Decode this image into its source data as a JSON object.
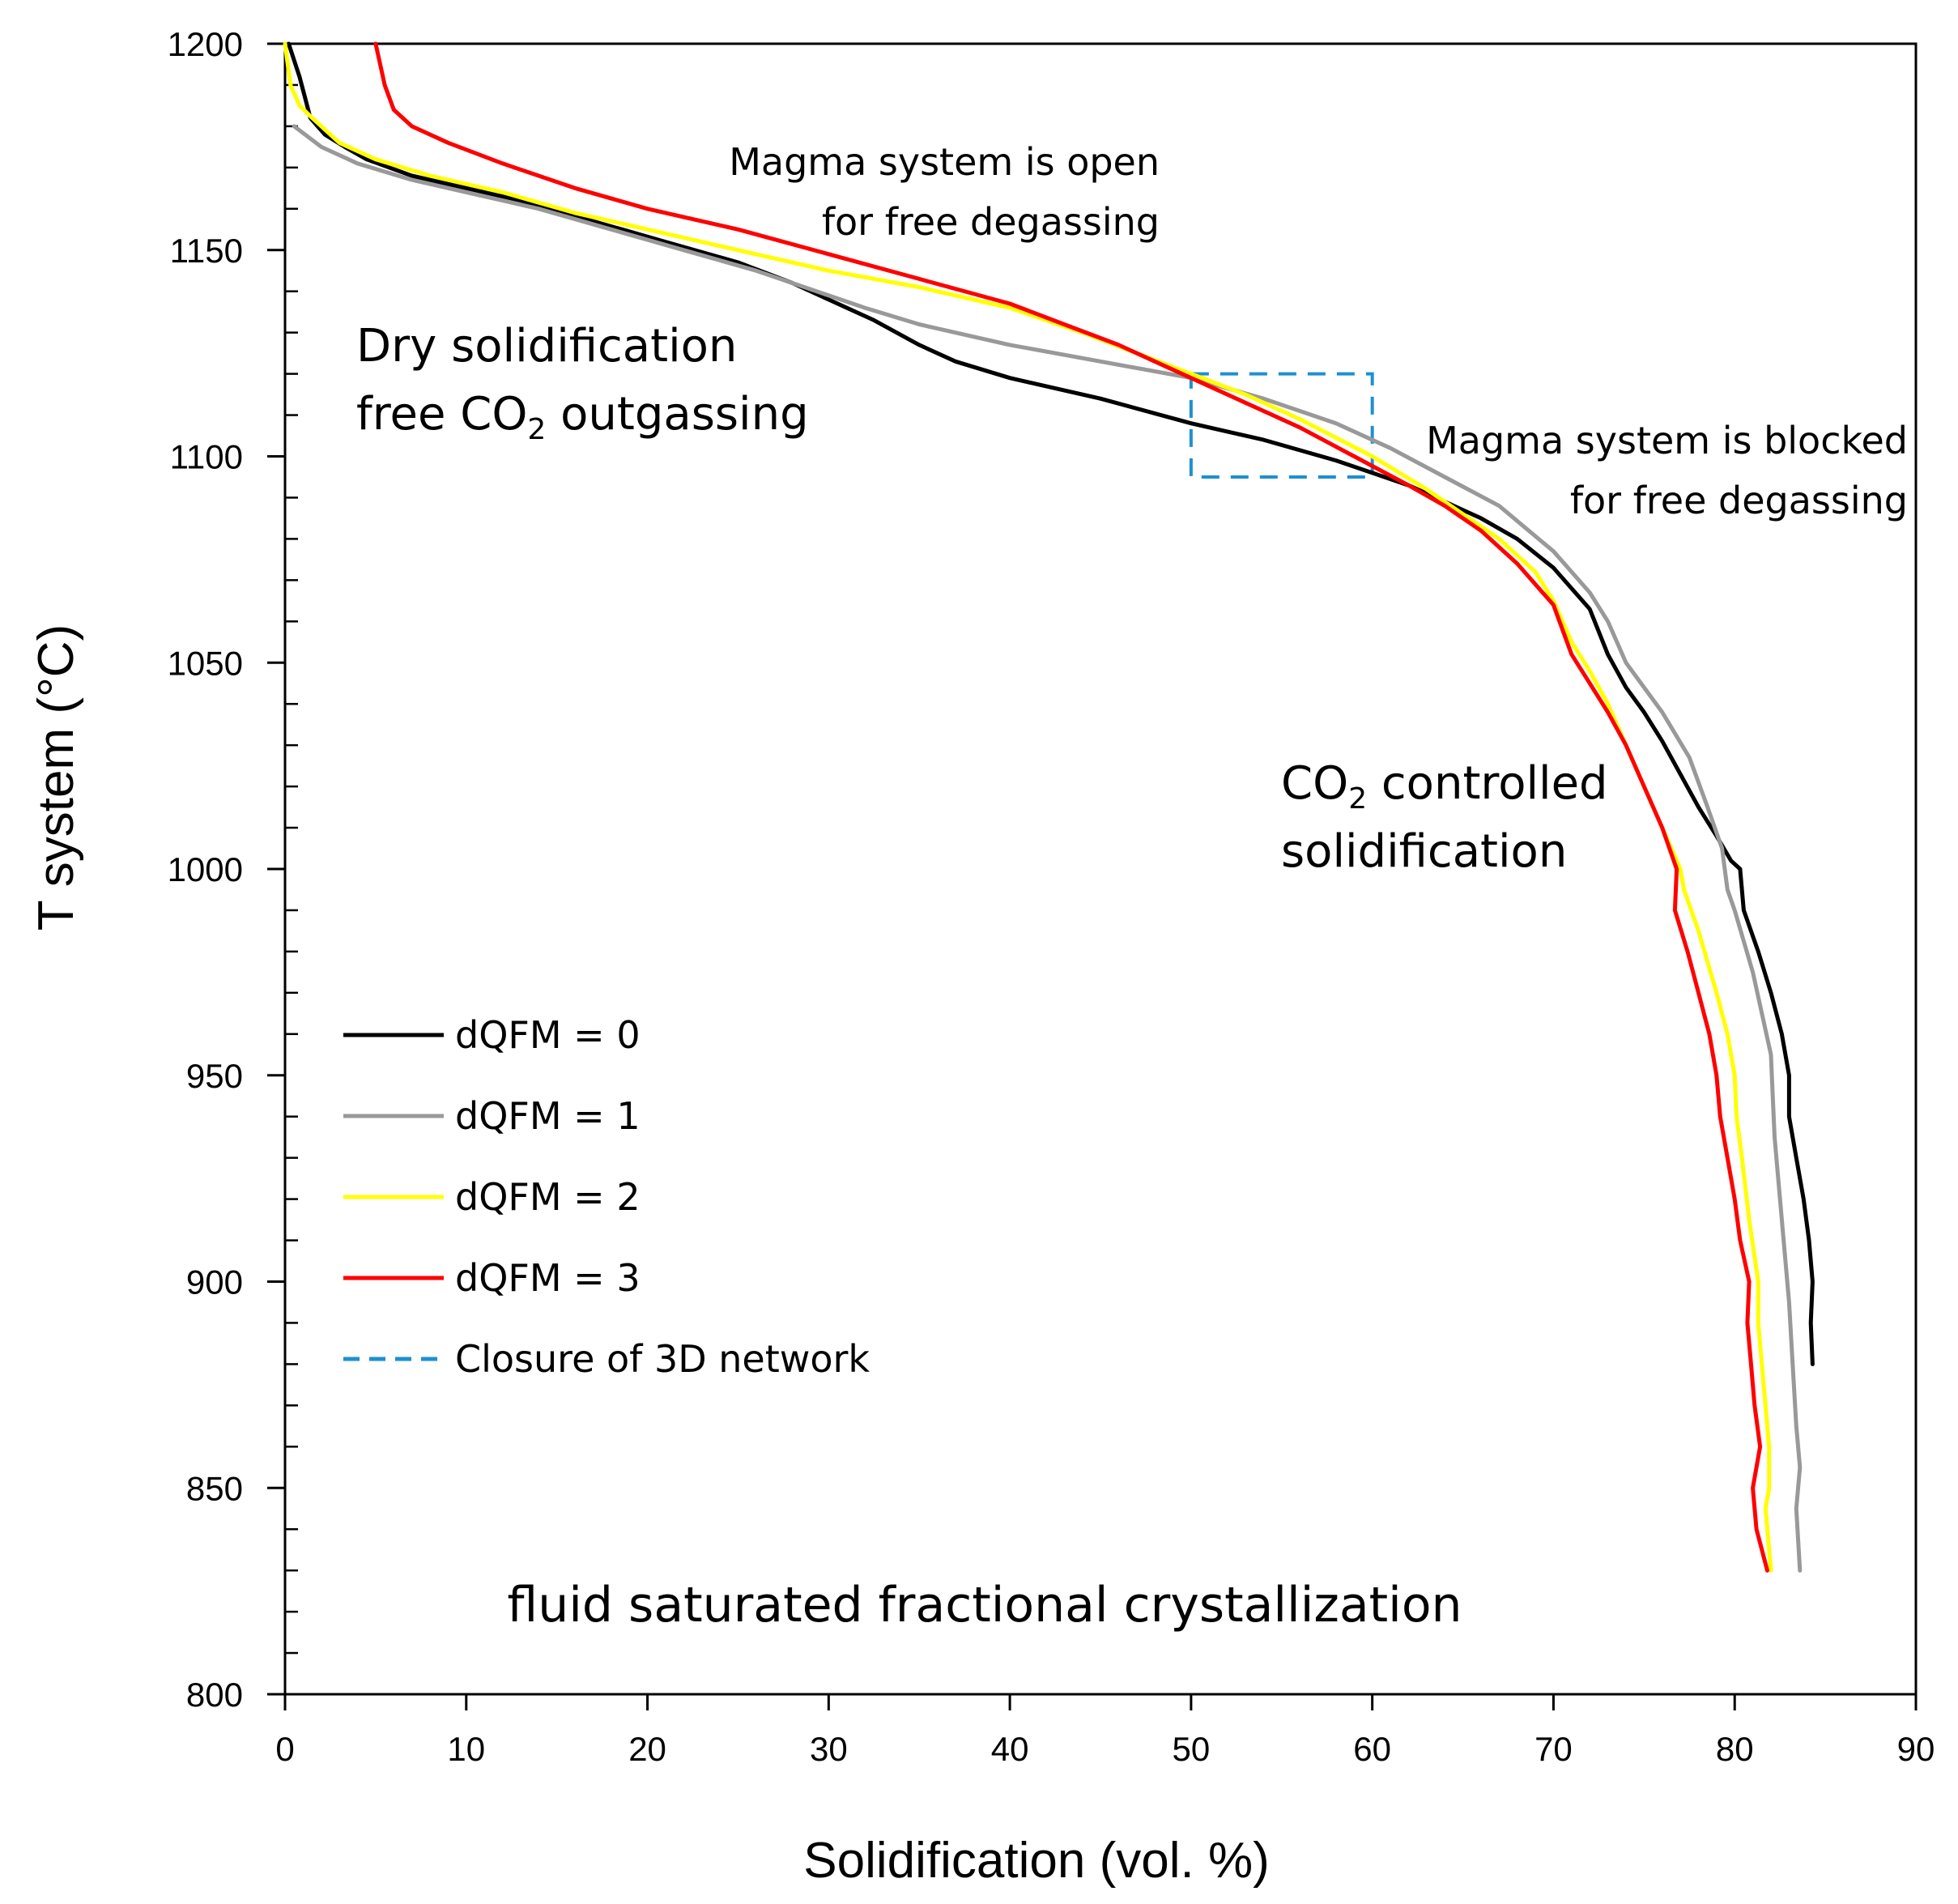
{
  "chart_data": {
    "type": "line",
    "title": "",
    "xlabel": "Solidification  (vol. %)",
    "ylabel": "T system (°C)",
    "xlim": [
      0,
      90
    ],
    "ylim": [
      800,
      1200
    ],
    "x_ticks": [
      0,
      10,
      20,
      30,
      40,
      50,
      60,
      70,
      80,
      90
    ],
    "y_ticks": [
      800,
      850,
      900,
      950,
      1000,
      1050,
      1100,
      1150,
      1200
    ],
    "series": [
      {
        "name": "dQFM = 0",
        "color": "#000000",
        "points": [
          [
            0.2,
            1200
          ],
          [
            0.8,
            1192
          ],
          [
            1.1,
            1187
          ],
          [
            1.4,
            1182
          ],
          [
            2.2,
            1178
          ],
          [
            3.3,
            1175
          ],
          [
            4.5,
            1172
          ],
          [
            7,
            1168
          ],
          [
            10,
            1165
          ],
          [
            13,
            1162
          ],
          [
            17,
            1157
          ],
          [
            21,
            1152
          ],
          [
            25,
            1147
          ],
          [
            28,
            1142
          ],
          [
            30,
            1138
          ],
          [
            32.5,
            1133
          ],
          [
            35,
            1127
          ],
          [
            37,
            1123
          ],
          [
            40,
            1119
          ],
          [
            45,
            1114
          ],
          [
            50,
            1108
          ],
          [
            54,
            1104
          ],
          [
            58,
            1099
          ],
          [
            60,
            1096
          ],
          [
            62,
            1093
          ],
          [
            64,
            1089
          ],
          [
            66,
            1085
          ],
          [
            68,
            1080
          ],
          [
            70,
            1073
          ],
          [
            72,
            1063
          ],
          [
            73,
            1052
          ],
          [
            74,
            1044
          ],
          [
            75,
            1038
          ],
          [
            76,
            1031
          ],
          [
            77,
            1023
          ],
          [
            78,
            1015
          ],
          [
            79,
            1008
          ],
          [
            79.8,
            1002
          ],
          [
            80.3,
            1000
          ],
          [
            80.5,
            990
          ],
          [
            81.3,
            980
          ],
          [
            82,
            970
          ],
          [
            82.6,
            960
          ],
          [
            83,
            950
          ],
          [
            83,
            940
          ],
          [
            83.4,
            930
          ],
          [
            83.8,
            920
          ],
          [
            84.1,
            910
          ],
          [
            84.3,
            900
          ],
          [
            84.2,
            890
          ],
          [
            84.3,
            880
          ]
        ]
      },
      {
        "name": "dQFM = 1",
        "color": "#999999",
        "points": [
          [
            0.5,
            1180
          ],
          [
            2,
            1175
          ],
          [
            4,
            1171
          ],
          [
            7,
            1167
          ],
          [
            10,
            1164
          ],
          [
            14,
            1160
          ],
          [
            18,
            1155
          ],
          [
            22,
            1150
          ],
          [
            26,
            1145
          ],
          [
            30,
            1139
          ],
          [
            32,
            1136
          ],
          [
            35,
            1132
          ],
          [
            40,
            1127
          ],
          [
            45,
            1123
          ],
          [
            50,
            1119
          ],
          [
            54,
            1114
          ],
          [
            58,
            1108
          ],
          [
            61,
            1102
          ],
          [
            64,
            1095
          ],
          [
            67,
            1088
          ],
          [
            70,
            1077
          ],
          [
            72,
            1067
          ],
          [
            73,
            1060
          ],
          [
            74,
            1050
          ],
          [
            76,
            1038
          ],
          [
            77.5,
            1027
          ],
          [
            78.5,
            1015
          ],
          [
            79.3,
            1005
          ],
          [
            79.6,
            995
          ],
          [
            80,
            990
          ],
          [
            81,
            975
          ],
          [
            81.5,
            965
          ],
          [
            82,
            955
          ],
          [
            82.1,
            945
          ],
          [
            82.2,
            935
          ],
          [
            82.5,
            920
          ],
          [
            82.8,
            905
          ],
          [
            83,
            895
          ],
          [
            83.2,
            880
          ],
          [
            83.4,
            865
          ],
          [
            83.6,
            855
          ],
          [
            83.4,
            845
          ],
          [
            83.6,
            830
          ]
        ]
      },
      {
        "name": "dQFM = 2",
        "color": "#ffff00",
        "points": [
          [
            0,
            1200
          ],
          [
            0.3,
            1190
          ],
          [
            0.8,
            1185
          ],
          [
            1.5,
            1182
          ],
          [
            3,
            1176
          ],
          [
            5,
            1172
          ],
          [
            8,
            1168
          ],
          [
            12,
            1164
          ],
          [
            16,
            1159
          ],
          [
            20,
            1155
          ],
          [
            25,
            1150
          ],
          [
            30,
            1145
          ],
          [
            35,
            1141
          ],
          [
            40,
            1136
          ],
          [
            44,
            1130
          ],
          [
            47,
            1125
          ],
          [
            50,
            1120
          ],
          [
            53,
            1115
          ],
          [
            56,
            1109
          ],
          [
            60,
            1100
          ],
          [
            63,
            1092
          ],
          [
            65,
            1086
          ],
          [
            67,
            1080
          ],
          [
            69,
            1072
          ],
          [
            70,
            1065
          ],
          [
            71,
            1055
          ],
          [
            72,
            1048
          ],
          [
            73,
            1040
          ],
          [
            74,
            1030
          ],
          [
            75,
            1020
          ],
          [
            76,
            1010
          ],
          [
            77,
            1000
          ],
          [
            77.2,
            995
          ],
          [
            78,
            985
          ],
          [
            79,
            970
          ],
          [
            79.6,
            960
          ],
          [
            80,
            950
          ],
          [
            80.1,
            940
          ],
          [
            80.4,
            930
          ],
          [
            80.8,
            915
          ],
          [
            81.3,
            900
          ],
          [
            81.3,
            890
          ],
          [
            81.6,
            875
          ],
          [
            81.9,
            860
          ],
          [
            81.9,
            850
          ],
          [
            81.7,
            845
          ],
          [
            82,
            830
          ]
        ]
      },
      {
        "name": "dQFM = 3",
        "color": "#ff0000",
        "points": [
          [
            5,
            1200
          ],
          [
            5.5,
            1190
          ],
          [
            6,
            1184
          ],
          [
            7,
            1180
          ],
          [
            9,
            1176
          ],
          [
            12,
            1171
          ],
          [
            16,
            1165
          ],
          [
            20,
            1160
          ],
          [
            25,
            1155
          ],
          [
            30,
            1149
          ],
          [
            35,
            1143
          ],
          [
            40,
            1137
          ],
          [
            43,
            1132
          ],
          [
            46,
            1127
          ],
          [
            48,
            1123
          ],
          [
            50,
            1119
          ],
          [
            53,
            1113
          ],
          [
            56,
            1107
          ],
          [
            59,
            1100
          ],
          [
            62,
            1093
          ],
          [
            64,
            1088
          ],
          [
            66,
            1082
          ],
          [
            68,
            1074
          ],
          [
            70,
            1064
          ],
          [
            71,
            1052
          ],
          [
            72,
            1045
          ],
          [
            73,
            1038
          ],
          [
            74,
            1030
          ],
          [
            75,
            1020
          ],
          [
            76,
            1010
          ],
          [
            76.8,
            1000
          ],
          [
            76.7,
            990
          ],
          [
            77.4,
            980
          ],
          [
            78,
            970
          ],
          [
            78.6,
            960
          ],
          [
            79,
            950
          ],
          [
            79.2,
            940
          ],
          [
            79.6,
            930
          ],
          [
            80,
            920
          ],
          [
            80.3,
            910
          ],
          [
            80.8,
            900
          ],
          [
            80.7,
            890
          ],
          [
            80.9,
            880
          ],
          [
            81.1,
            870
          ],
          [
            81.4,
            860
          ],
          [
            81,
            850
          ],
          [
            81.2,
            840
          ],
          [
            81.8,
            830
          ]
        ]
      }
    ],
    "closure_box": {
      "label": "Closure of 3D network",
      "color": "#1e90d0",
      "x_range": [
        50,
        60
      ],
      "y_range": [
        1095,
        1120
      ]
    },
    "annotations": {
      "open_line1": "Magma system is open",
      "open_line2": "for free degassing",
      "dry_line1": "Dry solidification",
      "dry_line2_pre": "free CO",
      "dry_line2_sub": "2",
      "dry_line2_post": " outgassing",
      "blocked_line1": "Magma system is blocked",
      "blocked_line2": "for free degassing",
      "co2_line1_pre": "CO",
      "co2_line1_sub": "2",
      "co2_line1_post": " controlled",
      "co2_line2": "solidification",
      "bottom": "fluid saturated  fractional  crystallization"
    }
  }
}
